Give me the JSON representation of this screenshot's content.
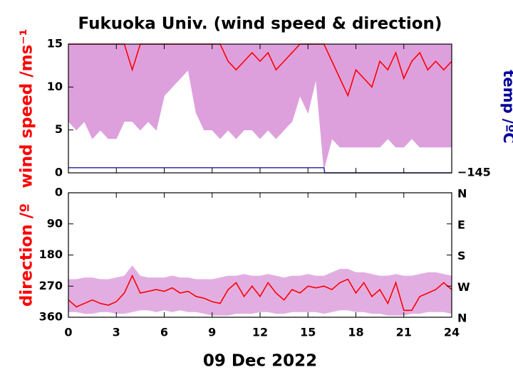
{
  "title": "Fukuoka Univ. (wind speed & direction)",
  "xlabel": "09 Dec 2022",
  "charts": [
    {
      "type": "line",
      "ylabel": "wind speed /ms⁻¹",
      "y2label": "temp /ºC",
      "xlim": [
        0,
        24
      ],
      "xticks": [
        0,
        3,
        6,
        9,
        12,
        15,
        18,
        21,
        24
      ],
      "ylim": [
        0,
        15
      ],
      "yticks": [
        0,
        5,
        10,
        15
      ],
      "y2lim": [
        -145,
        55
      ],
      "y2ticks": [
        {
          "value": -145,
          "label": "−145"
        }
      ],
      "x": [
        0,
        0.5,
        1,
        1.5,
        2,
        2.5,
        3,
        3.5,
        4,
        4.5,
        5,
        5.5,
        6,
        6.5,
        7,
        7.5,
        8,
        8.5,
        9,
        9.5,
        10,
        10.5,
        11,
        11.5,
        12,
        12.5,
        13,
        13.5,
        14,
        14.5,
        15,
        15.5,
        16,
        16.5,
        17,
        17.5,
        18,
        18.5,
        19,
        19.5,
        20,
        20.5,
        21,
        21.5,
        22,
        22.5,
        23,
        23.5,
        24
      ],
      "series": [
        {
          "kind": "area-to-top",
          "color": "#dda0dd",
          "values": [
            6,
            5,
            6,
            4,
            5,
            4,
            4,
            6,
            6,
            5,
            6,
            5,
            9,
            10,
            11,
            12,
            7,
            5,
            5,
            4,
            5,
            4,
            5,
            5,
            4,
            5,
            4,
            5,
            6,
            9,
            7,
            11,
            0.5,
            4,
            3,
            3,
            3,
            3,
            3,
            3,
            4,
            3,
            3,
            4,
            3,
            3,
            3,
            3,
            3
          ]
        },
        {
          "kind": "line",
          "color": "#ff0000",
          "values": [
            15,
            15,
            15,
            15,
            15,
            15,
            15,
            15,
            12,
            15,
            15,
            15,
            15,
            15,
            15,
            15,
            15,
            15,
            15,
            15,
            13,
            12,
            13,
            14,
            13,
            14,
            12,
            13,
            14,
            15,
            15,
            15,
            15,
            13,
            11,
            9,
            12,
            11,
            10,
            13,
            12,
            14,
            11,
            13,
            14,
            12,
            13,
            12,
            13
          ]
        },
        {
          "kind": "line",
          "color": "#3333aa",
          "axis": "y2",
          "x": [
            0,
            16,
            16.05,
            24
          ],
          "values": [
            -137,
            -137,
            -145,
            -145
          ]
        }
      ]
    },
    {
      "type": "line",
      "ylabel": "direction /º",
      "xlim": [
        0,
        24
      ],
      "xticks": [
        0,
        3,
        6,
        9,
        12,
        15,
        18,
        21,
        24
      ],
      "ylim": [
        360,
        0
      ],
      "yticks": [
        0,
        90,
        180,
        270,
        360
      ],
      "y2lim": [
        360,
        0
      ],
      "y2ticks": [
        {
          "value": 0,
          "label": "N"
        },
        {
          "value": 90,
          "label": "E"
        },
        {
          "value": 180,
          "label": "S"
        },
        {
          "value": 270,
          "label": "W"
        },
        {
          "value": 360,
          "label": "N"
        }
      ],
      "x": [
        0,
        0.5,
        1,
        1.5,
        2,
        2.5,
        3,
        3.5,
        4,
        4.5,
        5,
        5.5,
        6,
        6.5,
        7,
        7.5,
        8,
        8.5,
        9,
        9.5,
        10,
        10.5,
        11,
        11.5,
        12,
        12.5,
        13,
        13.5,
        14,
        14.5,
        15,
        15.5,
        16,
        16.5,
        17,
        17.5,
        18,
        18.5,
        19,
        19.5,
        20,
        20.5,
        21,
        21.5,
        22,
        22.5,
        23,
        23.5,
        24
      ],
      "series": [
        {
          "kind": "band",
          "color": "#dda0dd",
          "values": [
            250,
            250,
            245,
            245,
            250,
            250,
            245,
            240,
            210,
            240,
            245,
            245,
            245,
            240,
            245,
            245,
            250,
            250,
            250,
            245,
            240,
            240,
            235,
            240,
            240,
            235,
            240,
            245,
            240,
            240,
            235,
            240,
            240,
            230,
            220,
            220,
            230,
            230,
            235,
            240,
            240,
            235,
            240,
            240,
            235,
            230,
            230,
            235,
            240
          ],
          "values_high": [
            345,
            345,
            350,
            350,
            345,
            345,
            350,
            350,
            345,
            340,
            340,
            345,
            340,
            345,
            340,
            345,
            345,
            350,
            355,
            355,
            355,
            350,
            350,
            350,
            345,
            345,
            350,
            350,
            345,
            345,
            345,
            345,
            350,
            345,
            340,
            340,
            345,
            345,
            350,
            350,
            355,
            355,
            355,
            350,
            350,
            345,
            345,
            345,
            350
          ]
        },
        {
          "kind": "line",
          "color": "#ff0000",
          "values": [
            310,
            330,
            320,
            310,
            320,
            325,
            315,
            290,
            240,
            290,
            285,
            280,
            285,
            275,
            290,
            285,
            300,
            305,
            315,
            320,
            280,
            260,
            300,
            270,
            300,
            260,
            290,
            310,
            280,
            290,
            270,
            275,
            270,
            280,
            260,
            250,
            290,
            260,
            300,
            280,
            320,
            260,
            340,
            340,
            300,
            290,
            280,
            260,
            280
          ]
        }
      ]
    }
  ]
}
